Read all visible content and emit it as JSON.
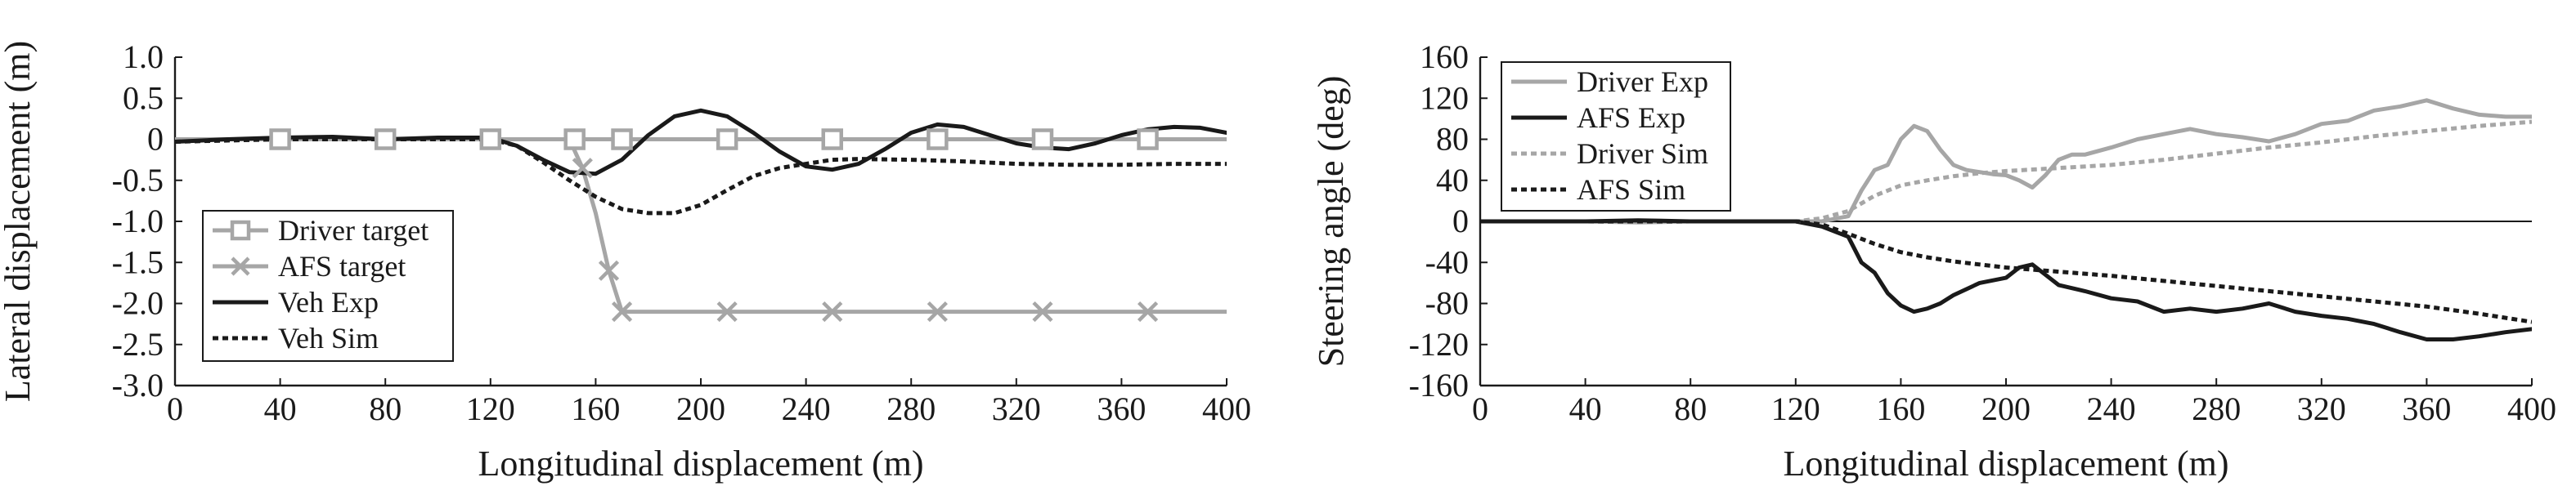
{
  "chart_data": [
    {
      "type": "line",
      "xlabel": "Longitudinal displacement (m)",
      "ylabel": "Lateral displacement (m)",
      "xlim": [
        0,
        400
      ],
      "ylim": [
        -3.0,
        1.0
      ],
      "x_ticks": [
        "0",
        "40",
        "80",
        "120",
        "160",
        "200",
        "240",
        "280",
        "320",
        "360",
        "400"
      ],
      "y_ticks": [
        "1.0",
        "0.5",
        "0",
        "-0.5",
        "-1.0",
        "-1.5",
        "-2.0",
        "-2.5",
        "-3.0"
      ],
      "grid": false,
      "legend_position": "bottom-left",
      "series": [
        {
          "name": "Driver target",
          "color": "#a6a6a6",
          "style": "solid",
          "marker": "square",
          "x": [
            0,
            40,
            80,
            120,
            152,
            170,
            210,
            250,
            290,
            330,
            370,
            400
          ],
          "y": [
            0,
            0,
            0,
            0,
            0,
            0,
            0,
            0,
            0,
            0,
            0,
            0
          ],
          "marker_x": [
            40,
            80,
            120,
            152,
            170,
            210,
            250,
            290,
            330,
            370
          ]
        },
        {
          "name": "AFS target",
          "color": "#a6a6a6",
          "style": "solid",
          "marker": "x",
          "x": [
            0,
            120,
            150,
            155,
            160,
            165,
            170,
            210,
            250,
            290,
            330,
            370,
            400
          ],
          "y": [
            0,
            0,
            0,
            -0.35,
            -0.9,
            -1.6,
            -2.1,
            -2.1,
            -2.1,
            -2.1,
            -2.1,
            -2.1,
            -2.1
          ],
          "marker_x": [
            155,
            165,
            170,
            210,
            250,
            290,
            330,
            370
          ]
        },
        {
          "name": "Veh Exp",
          "color": "#1a1a1a",
          "style": "solid",
          "x": [
            0,
            20,
            40,
            60,
            80,
            100,
            120,
            130,
            140,
            150,
            160,
            170,
            180,
            190,
            200,
            210,
            220,
            230,
            240,
            250,
            260,
            270,
            280,
            290,
            300,
            310,
            320,
            330,
            340,
            350,
            360,
            370,
            380,
            390,
            400
          ],
          "y": [
            -0.03,
            0.0,
            0.02,
            0.03,
            0.0,
            0.02,
            0.02,
            -0.08,
            -0.25,
            -0.4,
            -0.42,
            -0.25,
            0.05,
            0.28,
            0.35,
            0.28,
            0.08,
            -0.15,
            -0.33,
            -0.37,
            -0.3,
            -0.12,
            0.08,
            0.18,
            0.15,
            0.05,
            -0.05,
            -0.1,
            -0.12,
            -0.05,
            0.05,
            0.12,
            0.15,
            0.14,
            0.08
          ]
        },
        {
          "name": "Veh Sim",
          "color": "#1a1a1a",
          "style": "dotted",
          "x": [
            0,
            40,
            80,
            120,
            130,
            140,
            150,
            160,
            170,
            180,
            190,
            200,
            210,
            220,
            230,
            240,
            250,
            260,
            280,
            300,
            320,
            340,
            360,
            380,
            400
          ],
          "y": [
            -0.03,
            0.0,
            0.0,
            0.0,
            -0.08,
            -0.28,
            -0.5,
            -0.7,
            -0.85,
            -0.9,
            -0.9,
            -0.8,
            -0.62,
            -0.45,
            -0.35,
            -0.3,
            -0.25,
            -0.24,
            -0.25,
            -0.27,
            -0.3,
            -0.31,
            -0.31,
            -0.3,
            -0.3
          ]
        }
      ]
    },
    {
      "type": "line",
      "xlabel": "Longitudinal displacement (m)",
      "ylabel": "Steering angle (deg)",
      "xlim": [
        0,
        400
      ],
      "ylim": [
        -160,
        160
      ],
      "x_ticks": [
        "0",
        "40",
        "80",
        "120",
        "160",
        "200",
        "240",
        "280",
        "320",
        "360",
        "400"
      ],
      "y_ticks": [
        "160",
        "120",
        "80",
        "40",
        "0",
        "-40",
        "-80",
        "-120",
        "-160"
      ],
      "grid": false,
      "legend_position": "top-left",
      "series": [
        {
          "name": "Driver Exp",
          "color": "#a6a6a6",
          "style": "solid",
          "x": [
            0,
            20,
            40,
            60,
            80,
            100,
            120,
            130,
            140,
            145,
            150,
            155,
            160,
            165,
            170,
            175,
            180,
            185,
            190,
            195,
            200,
            205,
            210,
            215,
            220,
            225,
            230,
            240,
            250,
            260,
            270,
            280,
            290,
            300,
            310,
            320,
            330,
            340,
            350,
            360,
            370,
            380,
            390,
            400
          ],
          "y": [
            0,
            0,
            0,
            -1,
            0,
            0,
            0,
            0,
            5,
            30,
            50,
            55,
            80,
            93,
            88,
            70,
            55,
            50,
            48,
            46,
            45,
            40,
            33,
            45,
            60,
            65,
            65,
            72,
            80,
            85,
            90,
            85,
            82,
            78,
            85,
            95,
            98,
            108,
            112,
            118,
            110,
            104,
            102,
            102
          ]
        },
        {
          "name": "AFS Exp",
          "color": "#1a1a1a",
          "style": "solid",
          "x": [
            0,
            20,
            40,
            60,
            80,
            100,
            120,
            130,
            140,
            145,
            150,
            155,
            160,
            165,
            170,
            175,
            180,
            190,
            200,
            205,
            210,
            215,
            220,
            230,
            240,
            250,
            260,
            270,
            280,
            290,
            300,
            310,
            320,
            330,
            340,
            350,
            360,
            370,
            380,
            390,
            400
          ],
          "y": [
            0,
            0,
            0,
            1,
            0,
            0,
            0,
            -5,
            -15,
            -40,
            -50,
            -70,
            -82,
            -88,
            -85,
            -80,
            -72,
            -60,
            -55,
            -45,
            -42,
            -52,
            -62,
            -68,
            -75,
            -78,
            -88,
            -85,
            -88,
            -85,
            -80,
            -88,
            -92,
            -95,
            -100,
            -108,
            -115,
            -115,
            -112,
            -108,
            -105
          ]
        },
        {
          "name": "Driver Sim",
          "color": "#a6a6a6",
          "style": "dotted",
          "x": [
            0,
            40,
            80,
            110,
            120,
            130,
            140,
            150,
            160,
            170,
            180,
            190,
            200,
            220,
            240,
            260,
            280,
            300,
            320,
            340,
            360,
            380,
            400
          ],
          "y": [
            0,
            0,
            0,
            0,
            0,
            3,
            10,
            25,
            35,
            40,
            44,
            47,
            49,
            52,
            55,
            60,
            66,
            72,
            77,
            83,
            88,
            93,
            97
          ]
        },
        {
          "name": "AFS Sim",
          "color": "#1a1a1a",
          "style": "dotted",
          "x": [
            0,
            40,
            80,
            110,
            120,
            130,
            140,
            150,
            160,
            170,
            180,
            190,
            200,
            220,
            240,
            260,
            280,
            300,
            320,
            340,
            360,
            380,
            400
          ],
          "y": [
            0,
            0,
            0,
            0,
            0,
            -3,
            -12,
            -22,
            -30,
            -35,
            -39,
            -42,
            -45,
            -49,
            -53,
            -58,
            -63,
            -68,
            -73,
            -78,
            -83,
            -90,
            -98
          ]
        }
      ]
    }
  ]
}
